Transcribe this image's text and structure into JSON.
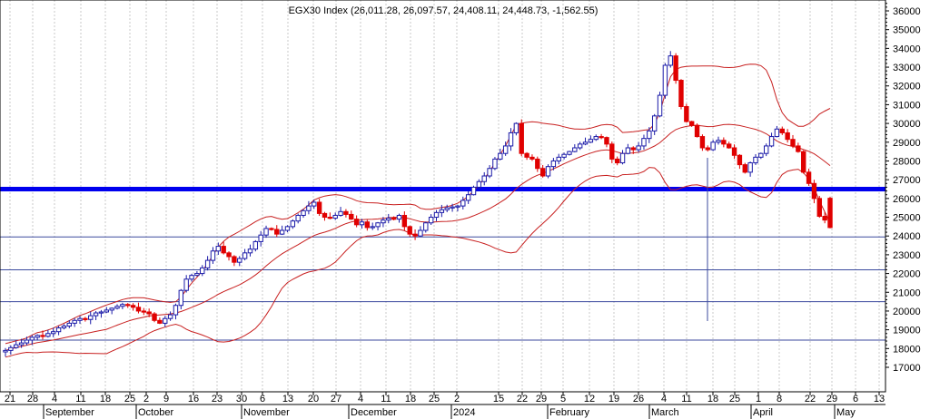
{
  "chart_data": {
    "type": "candlestick",
    "title": "EGX30 Index (26,011.28, 26,097.57, 24,408.11, 24,448.73, -1,562.55)",
    "ylim": [
      16000,
      36500
    ],
    "y_ticks": [
      17000,
      18000,
      19000,
      20000,
      21000,
      22000,
      23000,
      24000,
      25000,
      26000,
      27000,
      28000,
      29000,
      30000,
      31000,
      32000,
      33000,
      34000,
      35000,
      36000
    ],
    "x_tick_labels": [
      "21",
      "28",
      "4",
      "11",
      "18",
      "25",
      "2",
      "9",
      "16",
      "23",
      "30",
      "6",
      "13",
      "20",
      "27",
      "4",
      "11",
      "18",
      "25",
      "2",
      "15",
      "22",
      "29",
      "5",
      "12",
      "19",
      "26",
      "4",
      "11",
      "18",
      "25",
      "1",
      "8",
      "22",
      "29",
      "6",
      "13"
    ],
    "month_labels": [
      "September",
      "October",
      "November",
      "December",
      "2024",
      "February",
      "March",
      "April",
      "May"
    ],
    "horizontal_levels": [
      {
        "value": 26500,
        "color": "#0000ee",
        "style": "thick"
      },
      {
        "value": 23950,
        "color": "#3b4a9e",
        "style": "thin"
      },
      {
        "value": 22200,
        "color": "#3b4a9e",
        "style": "thin"
      },
      {
        "value": 20500,
        "color": "#3b4a9e",
        "style": "thin"
      },
      {
        "value": 18450,
        "color": "#3b4a9e",
        "style": "thin"
      }
    ],
    "colors": {
      "up": "#1a1aa8",
      "down": "#e00000",
      "band": "#c82020",
      "grid": "#c8c8c8"
    },
    "series": [
      {
        "name": "EGX30 Index",
        "closes": [
          17900,
          18050,
          18200,
          18300,
          18450,
          18600,
          18700,
          18650,
          18800,
          18900,
          19100,
          19200,
          19350,
          19500,
          19600,
          19550,
          19750,
          19900,
          19950,
          20050,
          20150,
          20250,
          20350,
          20300,
          20200,
          20000,
          19950,
          19850,
          19500,
          19350,
          19600,
          19800,
          20300,
          21100,
          21700,
          21900,
          22000,
          22300,
          22700,
          23200,
          23450,
          23100,
          22900,
          22600,
          22800,
          23100,
          23300,
          23700,
          24050,
          24400,
          24350,
          24100,
          24300,
          24500,
          24800,
          25100,
          25350,
          25600,
          25800,
          25200,
          25000,
          24950,
          25100,
          25300,
          25150,
          24900,
          24600,
          24750,
          24450,
          24500,
          24700,
          24850,
          24950,
          24900,
          25100,
          24500,
          24100,
          24000,
          24300,
          24700,
          25000,
          25250,
          25400,
          25500,
          25550,
          25600,
          25900,
          26200,
          26600,
          26900,
          27200,
          27600,
          28100,
          28400,
          28800,
          29500,
          30000,
          28400,
          28200,
          28100,
          27600,
          27200,
          27700,
          28000,
          28200,
          28350,
          28500,
          28700,
          28900,
          29000,
          29150,
          29300,
          29250,
          28900,
          28100,
          27900,
          28400,
          28700,
          28600,
          28800,
          29200,
          29600,
          30400,
          31500,
          33100,
          33600,
          32300,
          30900,
          30100,
          29900,
          29300,
          28700,
          28600,
          29000,
          29100,
          28900,
          28700,
          28300,
          27800,
          27400,
          27900,
          28200,
          28400,
          28800,
          29300,
          29700,
          29500,
          29150,
          28800,
          28500,
          27400,
          26800,
          26000,
          25050,
          24850,
          24450
        ]
      }
    ]
  }
}
